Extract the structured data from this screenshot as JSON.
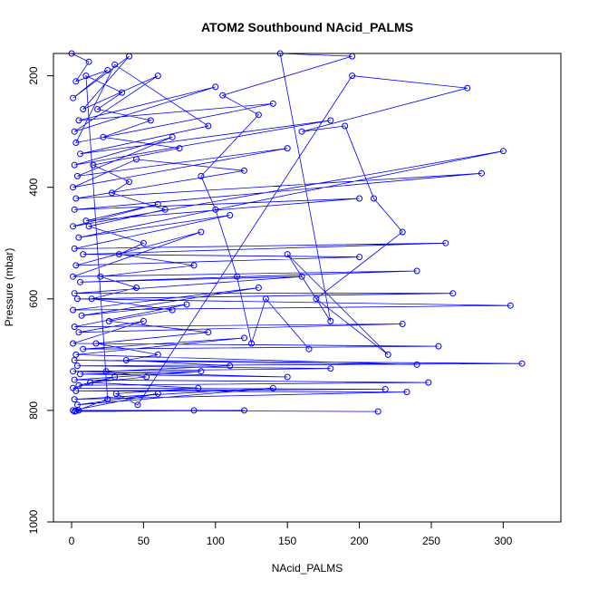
{
  "chart_data": {
    "type": "line",
    "title": "ATOM2 Southbound NAcid_PALMS",
    "xlabel": "NAcid_PALMS",
    "ylabel": "Pressure (mbar)",
    "xlim": [
      0,
      313
    ],
    "ylim": [
      1000,
      160
    ],
    "y_reversed": true,
    "xticks": [
      0,
      50,
      100,
      150,
      200,
      250,
      300
    ],
    "yticks": [
      200,
      400,
      600,
      800,
      1000
    ],
    "grid": false,
    "legend": "none",
    "color": "#0000ff",
    "marker": "open-circle",
    "series": [
      {
        "points": [
          [
            0,
            160
          ],
          [
            12,
            175
          ],
          [
            3,
            210
          ],
          [
            25,
            190
          ],
          [
            1,
            240
          ],
          [
            40,
            165
          ],
          [
            8,
            260
          ],
          [
            60,
            200
          ],
          [
            2,
            300
          ],
          [
            100,
            220
          ],
          [
            5,
            280
          ],
          [
            140,
            250
          ],
          [
            3,
            320
          ],
          [
            30,
            180
          ],
          [
            95,
            290
          ],
          [
            6,
            340
          ],
          [
            180,
            280
          ],
          [
            2,
            360
          ],
          [
            70,
            310
          ],
          [
            4,
            380
          ],
          [
            150,
            330
          ],
          [
            1,
            400
          ],
          [
            45,
            350
          ],
          [
            120,
            370
          ],
          [
            3,
            420
          ],
          [
            285,
            375
          ],
          [
            2,
            440
          ],
          [
            200,
            420
          ],
          [
            10,
            460
          ],
          [
            60,
            430
          ],
          [
            1,
            470
          ],
          [
            300,
            335
          ],
          [
            5,
            490
          ],
          [
            110,
            450
          ],
          [
            2,
            510
          ],
          [
            260,
            500
          ],
          [
            8,
            520
          ],
          [
            200,
            525
          ],
          [
            3,
            540
          ],
          [
            90,
            480
          ],
          [
            1,
            560
          ],
          [
            240,
            550
          ],
          [
            6,
            570
          ],
          [
            160,
            560
          ],
          [
            2,
            590
          ],
          [
            265,
            590
          ],
          [
            4,
            600
          ],
          [
            305,
            612
          ],
          [
            1,
            620
          ],
          [
            130,
            580
          ],
          [
            7,
            630
          ],
          [
            80,
            610
          ],
          [
            2,
            650
          ],
          [
            230,
            645
          ],
          [
            5,
            660
          ],
          [
            50,
            640
          ],
          [
            1,
            680
          ],
          [
            255,
            685
          ],
          [
            8,
            690
          ],
          [
            120,
            670
          ],
          [
            3,
            700
          ],
          [
            240,
            718
          ],
          [
            2,
            710
          ],
          [
            313,
            716
          ],
          [
            4,
            720
          ],
          [
            180,
            725
          ],
          [
            1,
            730
          ],
          [
            150,
            740
          ],
          [
            6,
            735
          ],
          [
            90,
            730
          ],
          [
            2,
            745
          ],
          [
            248,
            750
          ],
          [
            5,
            755
          ],
          [
            30,
            740
          ],
          [
            1,
            760
          ],
          [
            218,
            762
          ],
          [
            3,
            765
          ],
          [
            233,
            767
          ],
          [
            2,
            780
          ],
          [
            140,
            760
          ],
          [
            4,
            790
          ],
          [
            60,
            770
          ],
          [
            1,
            800
          ],
          [
            213,
            802
          ],
          [
            5,
            800
          ],
          [
            120,
            800
          ],
          [
            2,
            802
          ],
          [
            85,
            800
          ],
          [
            3,
            801
          ],
          [
            25,
            780
          ],
          [
            10,
            200
          ],
          [
            35,
            230
          ],
          [
            18,
            260
          ],
          [
            55,
            280
          ],
          [
            22,
            310
          ],
          [
            75,
            330
          ],
          [
            15,
            360
          ],
          [
            40,
            390
          ],
          [
            28,
            410
          ],
          [
            65,
            440
          ],
          [
            12,
            470
          ],
          [
            50,
            500
          ],
          [
            33,
            520
          ],
          [
            85,
            540
          ],
          [
            20,
            560
          ],
          [
            45,
            580
          ],
          [
            14,
            600
          ],
          [
            70,
            620
          ],
          [
            26,
            640
          ],
          [
            95,
            660
          ],
          [
            17,
            680
          ],
          [
            60,
            700
          ],
          [
            38,
            710
          ],
          [
            110,
            720
          ],
          [
            24,
            730
          ],
          [
            52,
            740
          ],
          [
            13,
            750
          ],
          [
            88,
            760
          ],
          [
            31,
            770
          ],
          [
            46,
            790
          ],
          [
            195,
            200
          ],
          [
            275,
            222
          ],
          [
            160,
            300
          ],
          [
            190,
            290
          ],
          [
            210,
            420
          ],
          [
            230,
            480
          ],
          [
            170,
            600
          ],
          [
            220,
            700
          ],
          [
            150,
            520
          ],
          [
            180,
            640
          ],
          [
            145,
            160
          ],
          [
            195,
            165
          ],
          [
            105,
            235
          ],
          [
            130,
            270
          ],
          [
            90,
            380
          ],
          [
            100,
            440
          ],
          [
            115,
            560
          ],
          [
            125,
            680
          ],
          [
            135,
            600
          ],
          [
            165,
            690
          ]
        ]
      }
    ]
  }
}
